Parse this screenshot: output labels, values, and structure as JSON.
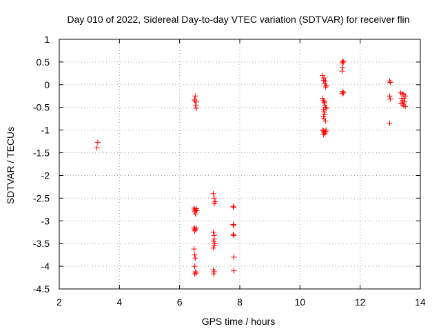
{
  "chart_data": {
    "type": "scatter",
    "title": "Day 010 of 2022, Sidereal Day-to-day VTEC variation (SDTVAR) for receiver flin",
    "xlabel": "GPS time / hours",
    "ylabel": "SDTVAR / TECUs",
    "xlim": [
      2,
      14
    ],
    "ylim": [
      -4.5,
      1
    ],
    "xticks": [
      2,
      4,
      6,
      8,
      10,
      12,
      14
    ],
    "yticks": [
      1,
      0.5,
      0,
      -0.5,
      -1,
      -1.5,
      -2,
      -2.5,
      -3,
      -3.5,
      -4,
      -4.5
    ],
    "xtick_labels": [
      "2",
      "4",
      "6",
      "8",
      "10",
      "12",
      "14"
    ],
    "ytick_labels": [
      "1",
      "0.5",
      "0",
      "-0.5",
      "-1",
      "-1.5",
      "-2",
      "-2.5",
      "-3",
      "-3.5",
      "-4",
      "-4.5"
    ],
    "grid": true,
    "marker": "+",
    "series": [
      {
        "name": "SDTVAR",
        "color": "#ff0000",
        "points": [
          [
            3.28,
            -1.27
          ],
          [
            3.25,
            -1.39
          ],
          [
            6.52,
            -0.25
          ],
          [
            6.5,
            -0.32
          ],
          [
            6.55,
            -0.38
          ],
          [
            6.53,
            -0.45
          ],
          [
            6.55,
            -0.52
          ],
          [
            6.5,
            -0.35
          ],
          [
            6.48,
            -2.72
          ],
          [
            6.5,
            -2.75
          ],
          [
            6.52,
            -2.78
          ],
          [
            6.55,
            -2.73
          ],
          [
            6.5,
            -2.8
          ],
          [
            6.53,
            -2.85
          ],
          [
            6.57,
            -2.77
          ],
          [
            6.48,
            -3.15
          ],
          [
            6.5,
            -3.18
          ],
          [
            6.53,
            -3.2
          ],
          [
            6.55,
            -3.16
          ],
          [
            6.5,
            -3.22
          ],
          [
            6.48,
            -3.62
          ],
          [
            6.5,
            -3.75
          ],
          [
            6.52,
            -3.82
          ],
          [
            6.5,
            -4.0
          ],
          [
            6.53,
            -4.12
          ],
          [
            6.55,
            -4.15
          ],
          [
            6.5,
            -4.17
          ],
          [
            7.12,
            -2.4
          ],
          [
            7.15,
            -2.5
          ],
          [
            7.18,
            -2.58
          ],
          [
            7.15,
            -2.62
          ],
          [
            7.12,
            -3.25
          ],
          [
            7.15,
            -3.32
          ],
          [
            7.15,
            -3.4
          ],
          [
            7.13,
            -3.45
          ],
          [
            7.17,
            -3.5
          ],
          [
            7.15,
            -3.55
          ],
          [
            7.12,
            -3.6
          ],
          [
            7.12,
            -4.08
          ],
          [
            7.15,
            -4.12
          ],
          [
            7.13,
            -4.17
          ],
          [
            7.78,
            -2.68
          ],
          [
            7.8,
            -2.7
          ],
          [
            7.78,
            -3.08
          ],
          [
            7.8,
            -3.1
          ],
          [
            7.78,
            -3.3
          ],
          [
            7.8,
            -3.32
          ],
          [
            7.8,
            -3.8
          ],
          [
            7.8,
            -4.1
          ],
          [
            10.75,
            0.2
          ],
          [
            10.8,
            0.15
          ],
          [
            10.78,
            0.1
          ],
          [
            10.85,
            0.08
          ],
          [
            10.82,
            0.02
          ],
          [
            10.88,
            -0.02
          ],
          [
            10.85,
            -0.05
          ],
          [
            10.75,
            -0.3
          ],
          [
            10.78,
            -0.35
          ],
          [
            10.8,
            -0.4
          ],
          [
            10.82,
            -0.45
          ],
          [
            10.85,
            -0.5
          ],
          [
            10.78,
            -0.55
          ],
          [
            10.8,
            -0.6
          ],
          [
            10.83,
            -0.65
          ],
          [
            10.78,
            -0.7
          ],
          [
            10.8,
            -0.75
          ],
          [
            10.85,
            -0.8
          ],
          [
            10.82,
            -0.38
          ],
          [
            10.87,
            -0.52
          ],
          [
            10.75,
            -1.0
          ],
          [
            10.78,
            -1.02
          ],
          [
            10.8,
            -1.05
          ],
          [
            10.83,
            -1.08
          ],
          [
            10.85,
            -1.03
          ],
          [
            10.78,
            -1.1
          ],
          [
            10.87,
            -1.0
          ],
          [
            11.42,
            0.52
          ],
          [
            11.4,
            0.48
          ],
          [
            11.45,
            0.5
          ],
          [
            11.42,
            0.38
          ],
          [
            11.4,
            0.3
          ],
          [
            11.42,
            -0.15
          ],
          [
            11.45,
            -0.18
          ],
          [
            11.4,
            -0.2
          ],
          [
            12.98,
            0.08
          ],
          [
            13.0,
            0.05
          ],
          [
            12.98,
            -0.25
          ],
          [
            13.0,
            -0.32
          ],
          [
            12.98,
            -0.85
          ],
          [
            13.35,
            -0.18
          ],
          [
            13.4,
            -0.2
          ],
          [
            13.45,
            -0.22
          ],
          [
            13.5,
            -0.25
          ],
          [
            13.38,
            -0.3
          ],
          [
            13.42,
            -0.35
          ],
          [
            13.48,
            -0.38
          ],
          [
            13.36,
            -0.42
          ],
          [
            13.44,
            -0.45
          ],
          [
            13.5,
            -0.48
          ],
          [
            13.4,
            -0.42
          ],
          [
            13.46,
            -0.3
          ]
        ]
      }
    ]
  }
}
